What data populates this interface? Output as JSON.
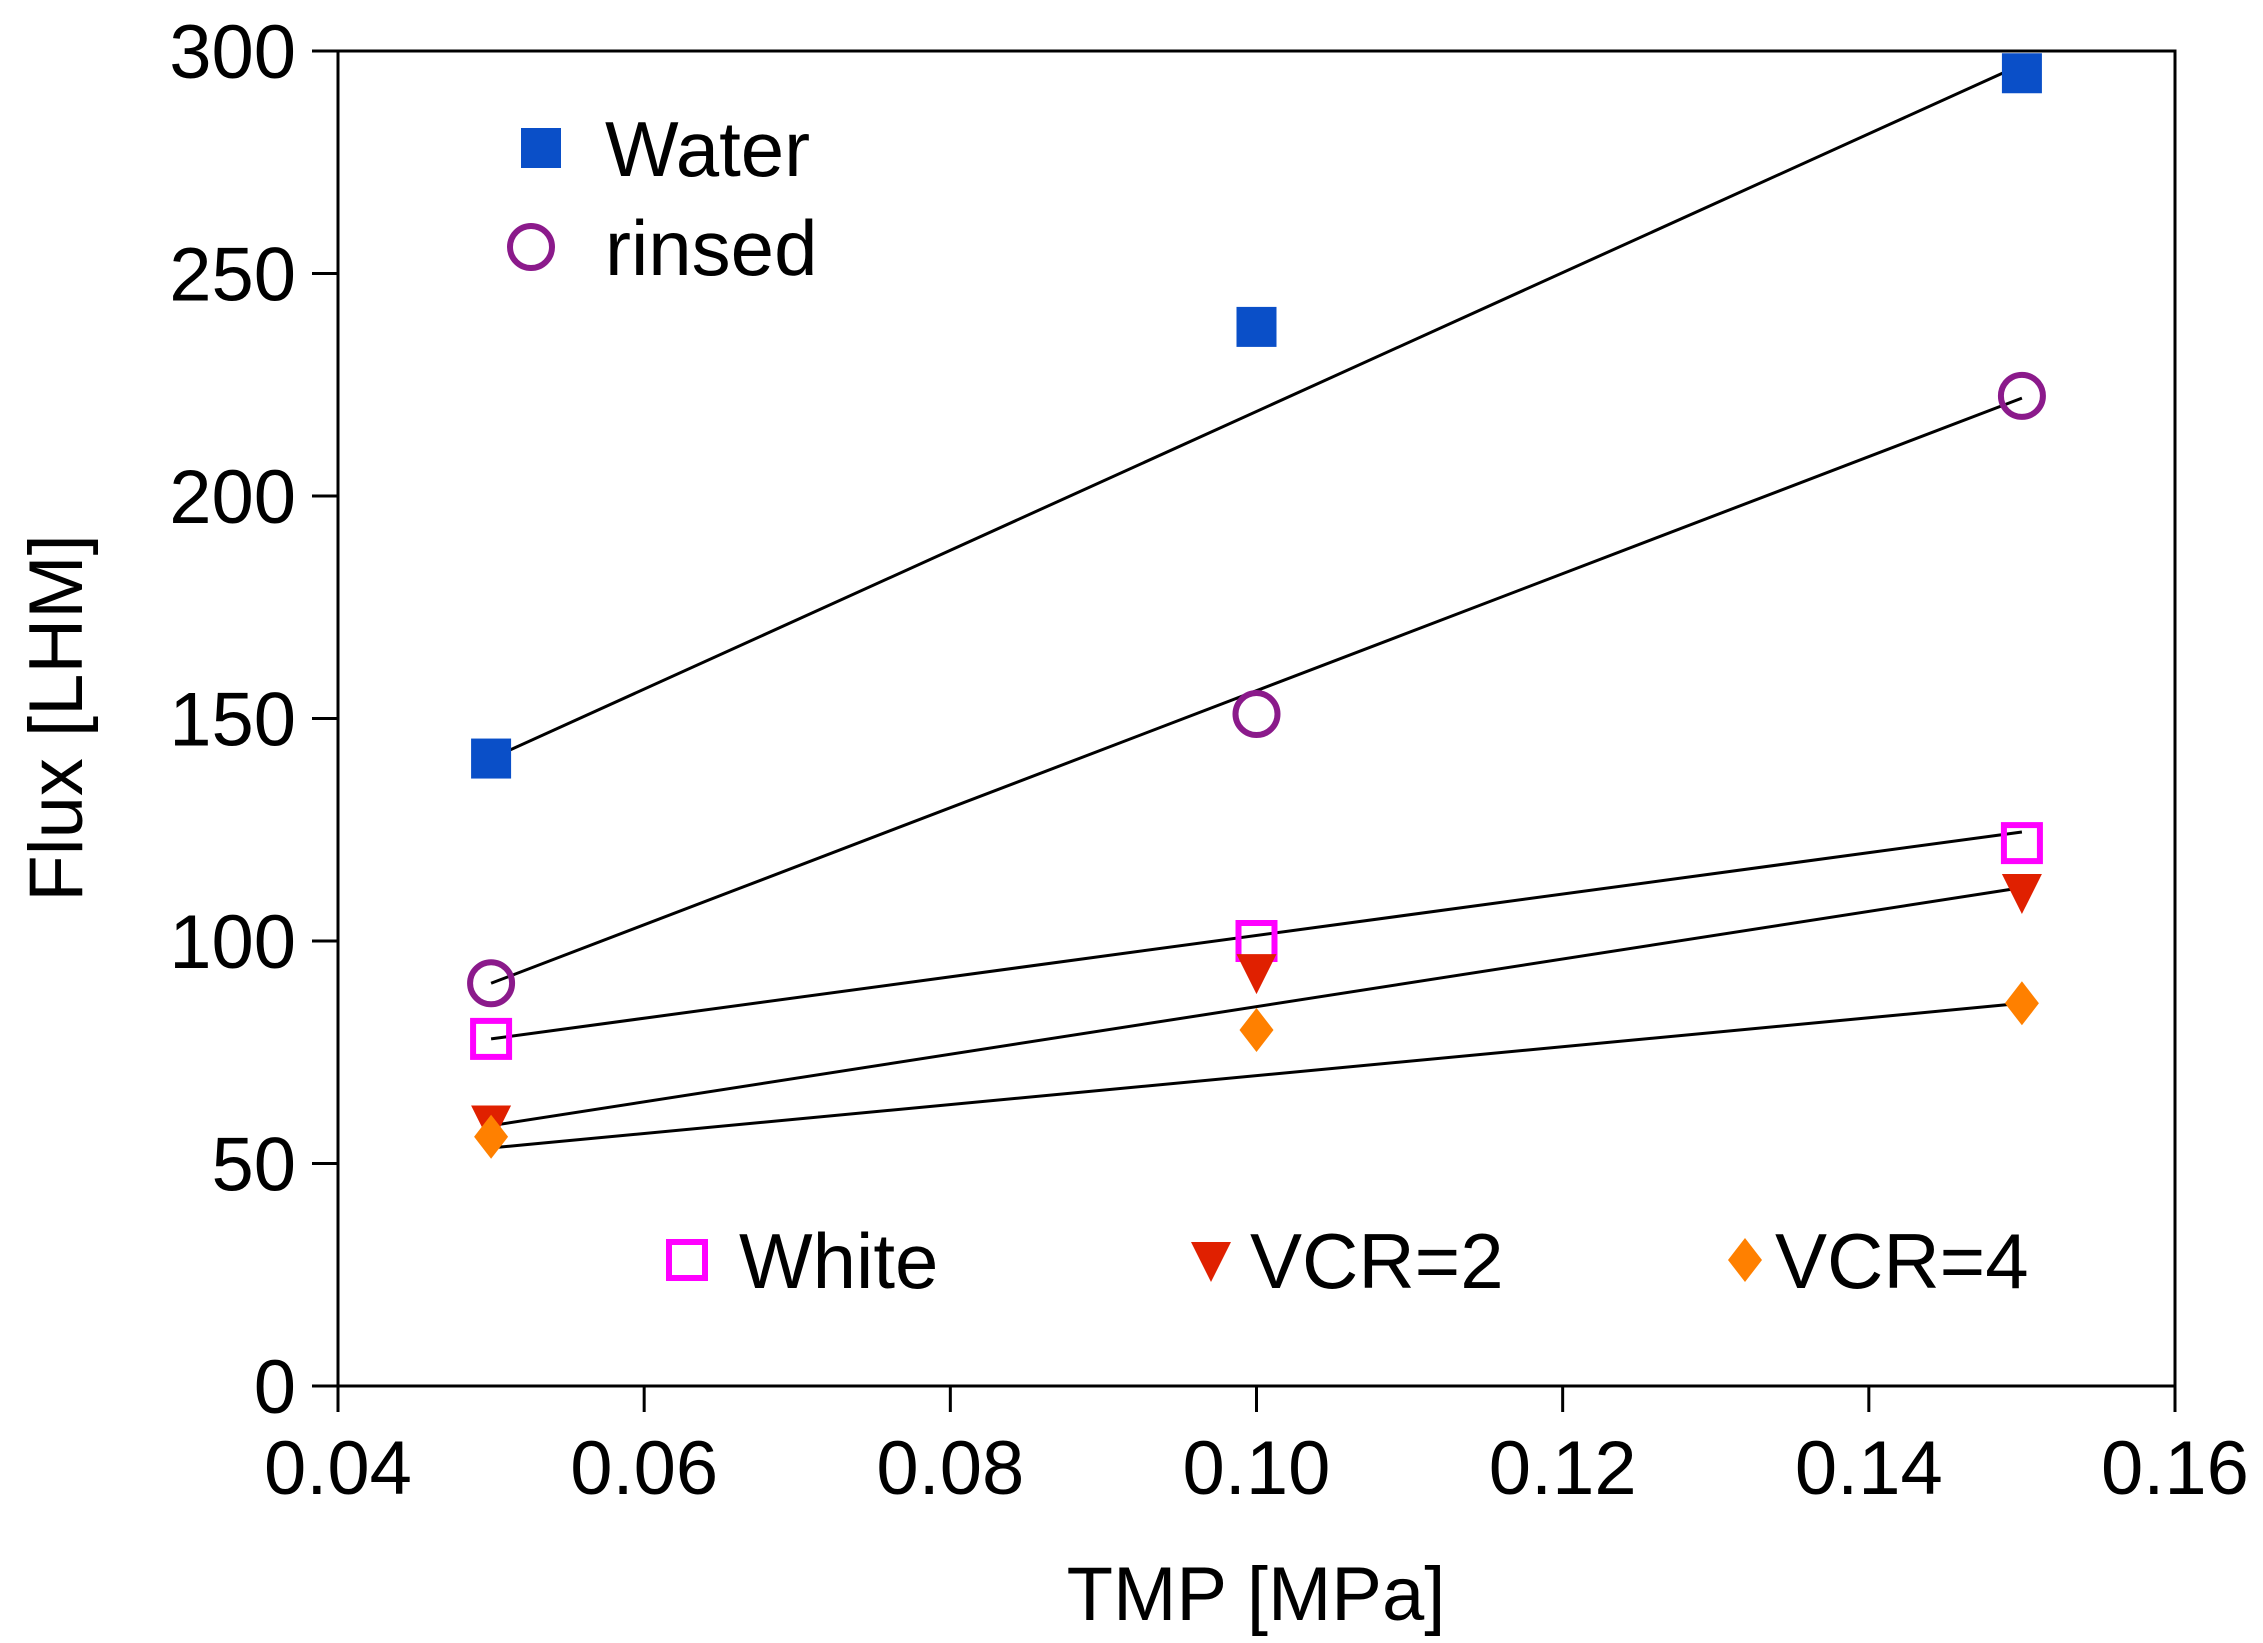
{
  "chart_data": {
    "type": "scatter",
    "title": "",
    "xlabel": "TMP [MPa]",
    "ylabel": "Flux [LHM]",
    "xlim": [
      0.04,
      0.16
    ],
    "ylim": [
      0,
      300
    ],
    "xticks": [
      0.04,
      0.06,
      0.08,
      0.1,
      0.12,
      0.14,
      0.16
    ],
    "xtick_labels": [
      "0.04",
      "0.06",
      "0.08",
      "0.10",
      "0.12",
      "0.14",
      "0.16"
    ],
    "yticks": [
      0,
      50,
      100,
      150,
      200,
      250,
      300
    ],
    "ytick_labels": [
      "0",
      "50",
      "100",
      "150",
      "200",
      "250",
      "300"
    ],
    "grid": false,
    "series": [
      {
        "name": "Water",
        "marker": "filled-square",
        "color": "#0a4fc8",
        "x": [
          0.05,
          0.1,
          0.15
        ],
        "values": [
          141,
          238,
          295
        ],
        "fit": [
          [
            0.05,
            141
          ],
          [
            0.15,
            297
          ]
        ]
      },
      {
        "name": "rinsed",
        "marker": "open-circle",
        "color": "#8b1a8b",
        "x": [
          0.05,
          0.1,
          0.15
        ],
        "values": [
          90.5,
          151,
          222.5
        ],
        "fit": [
          [
            0.05,
            90.5
          ],
          [
            0.15,
            222
          ]
        ]
      },
      {
        "name": "White",
        "marker": "open-square",
        "color": "#ff00ff",
        "x": [
          0.05,
          0.1,
          0.15
        ],
        "values": [
          78,
          100,
          122
        ],
        "fit": [
          [
            0.05,
            78
          ],
          [
            0.15,
            124.5
          ]
        ]
      },
      {
        "name": "VCR=2",
        "marker": "filled-triangle-down",
        "color": "#e02000",
        "x": [
          0.05,
          0.1,
          0.15
        ],
        "values": [
          59,
          93,
          111
        ],
        "fit": [
          [
            0.05,
            58.5
          ],
          [
            0.15,
            112
          ]
        ]
      },
      {
        "name": "VCR=4",
        "marker": "filled-diamond",
        "color": "#ff8000",
        "x": [
          0.05,
          0.1,
          0.15
        ],
        "values": [
          56,
          80,
          86
        ],
        "fit": [
          [
            0.05,
            53.5
          ],
          [
            0.15,
            86
          ]
        ]
      }
    ],
    "legend_top": [
      "Water",
      "rinsed"
    ],
    "legend_bottom": [
      "White",
      "VCR=2",
      "VCR=4"
    ]
  }
}
